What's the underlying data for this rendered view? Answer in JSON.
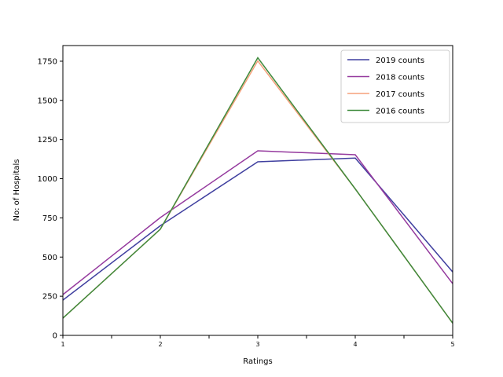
{
  "chart_data": {
    "type": "line",
    "title": "",
    "xlabel": "Ratings",
    "ylabel": "No: of Hospitals",
    "x": [
      1,
      2,
      3,
      4,
      5
    ],
    "x_tick_labels": [
      "1",
      "2",
      "3",
      "4",
      "5"
    ],
    "x_minor_ticks": [
      1.5,
      2.5,
      3.5,
      4.5
    ],
    "xlim": [
      1,
      5
    ],
    "ylim": [
      0,
      1850
    ],
    "y_ticks": [
      0,
      250,
      500,
      750,
      1000,
      1250,
      1500,
      1750
    ],
    "y_tick_labels": [
      "0",
      "250",
      "500",
      "750",
      "1000",
      "1250",
      "1500",
      "1750"
    ],
    "grid": false,
    "legend_position": "top-right",
    "series": [
      {
        "name": "2019 counts",
        "color": "#3f3f9f",
        "values": [
          225,
          700,
          1108,
          1132,
          405
        ]
      },
      {
        "name": "2018 counts",
        "color": "#953a9e",
        "values": [
          260,
          752,
          1178,
          1153,
          330
        ]
      },
      {
        "name": "2017 counts",
        "color": "#f5a07a",
        "values": [
          110,
          678,
          1752,
          935,
          78
        ]
      },
      {
        "name": "2016 counts",
        "color": "#3e8a3c",
        "values": [
          110,
          678,
          1772,
          935,
          78
        ]
      }
    ]
  }
}
